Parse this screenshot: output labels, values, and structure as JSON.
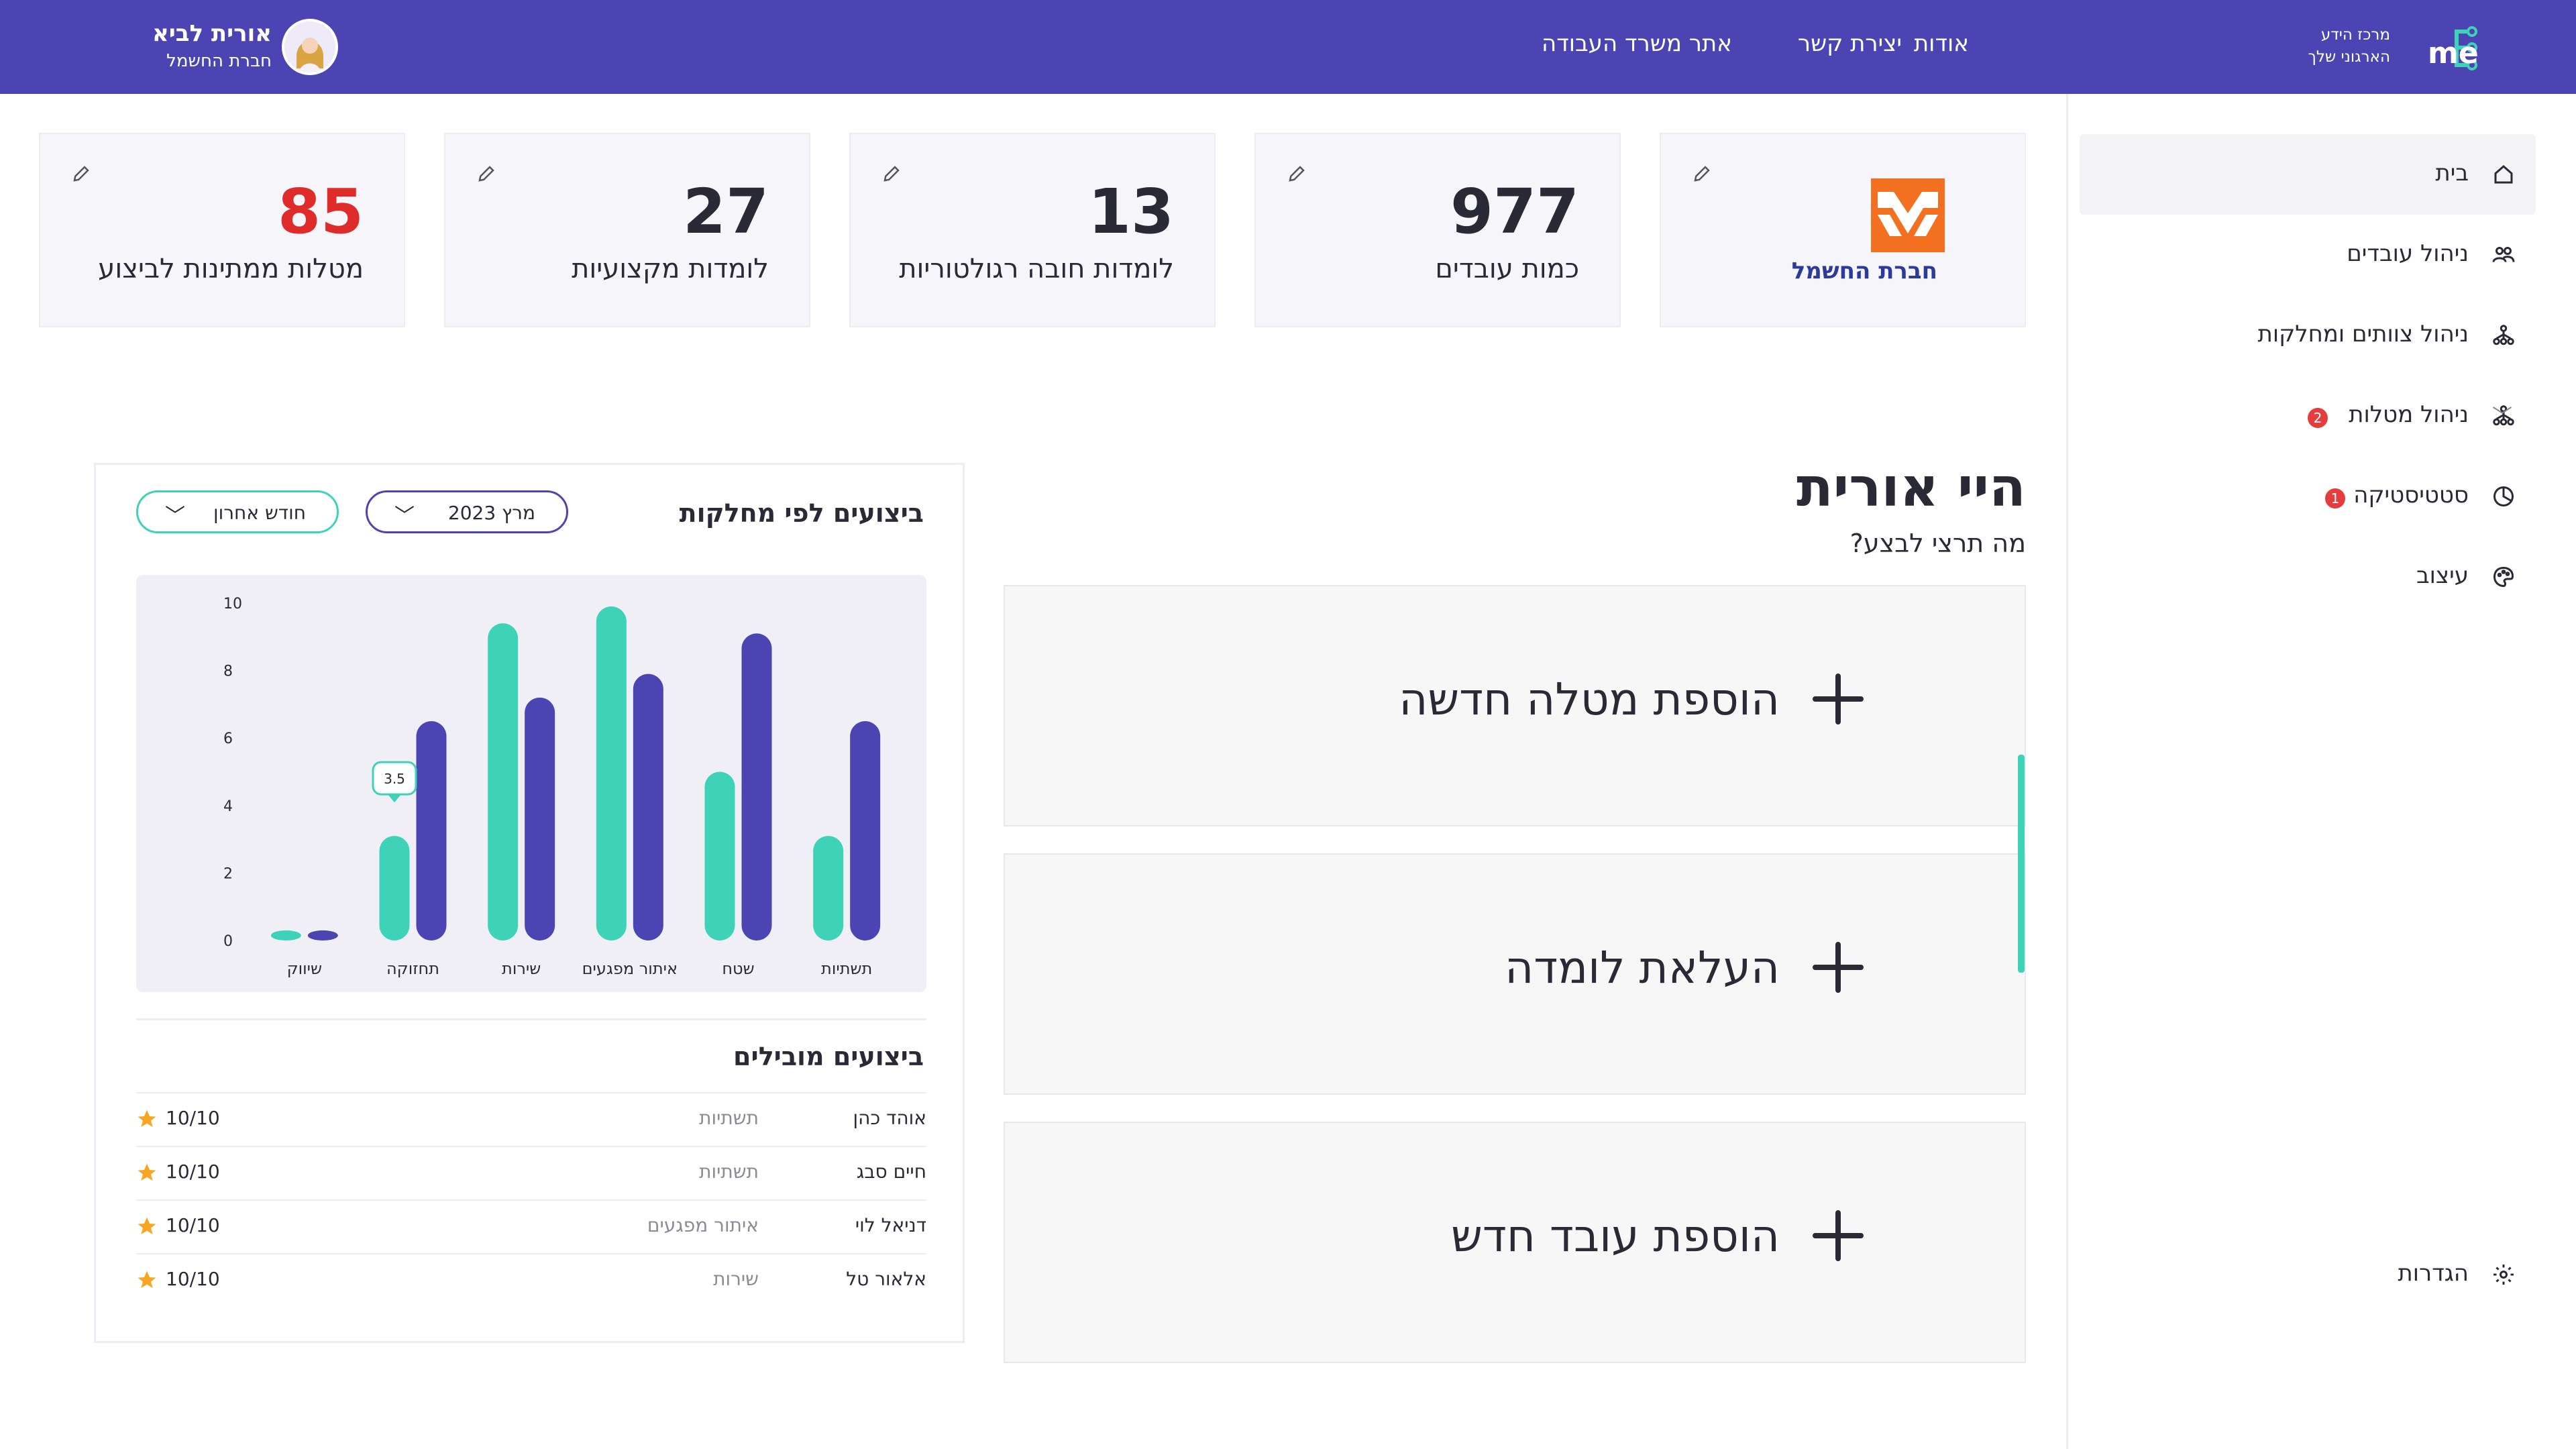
{
  "header": {
    "logo_tagline_1": "מרכז הידע",
    "logo_tagline_2": "הארגוני שלך",
    "logo_brand": "me",
    "nav": [
      "אודות",
      "יצירת קשר",
      "אתר משרד העבודה"
    ],
    "user_name": "אורית לביא",
    "user_company": "חברת החשמל"
  },
  "sidebar": {
    "items": [
      {
        "label": "בית",
        "icon": "home-icon",
        "active": true
      },
      {
        "label": "ניהול עובדים",
        "icon": "users-icon"
      },
      {
        "label": "ניהול צוותים ומחלקות",
        "icon": "org-chart-icon"
      },
      {
        "label": "ניהול מטלות",
        "icon": "tasks-icon",
        "badge": "2"
      },
      {
        "label": "סטטיסטיקה",
        "icon": "stats-icon",
        "badge": "1"
      },
      {
        "label": "עיצוב",
        "icon": "palette-icon"
      }
    ],
    "settings_label": "הגדרות"
  },
  "stats": {
    "company_logo_text": "חברת החשמל",
    "employees_value": "977",
    "employees_label": "כמות עובדים",
    "regulatory_value": "13",
    "regulatory_label": "לומדות חובה רגולטוריות",
    "professional_value": "27",
    "professional_label": "לומדות מקצועיות",
    "pending_value": "85",
    "pending_label": "מטלות ממתינות לביצוע"
  },
  "greeting": {
    "title": "היי אורית",
    "subtitle": "מה תרצי לבצע?"
  },
  "actions": [
    "הוספת מטלה חדשה",
    "העלאת לומדה",
    "הוספת עובד חדש"
  ],
  "panel": {
    "title": "ביצועים לפי מחלקות",
    "filter_month": "מרץ 2023",
    "filter_range": "חודש אחרון",
    "leaders_title": "ביצועים מובילים",
    "leaders": [
      {
        "name": "אוהד כהן",
        "dept": "תשתיות",
        "score": "10/10"
      },
      {
        "name": "חיים סבג",
        "dept": "תשתיות",
        "score": "10/10"
      },
      {
        "name": "דניאל לוי",
        "dept": "איתור מפגעים",
        "score": "10/10"
      },
      {
        "name": "אלאור טל",
        "dept": "שירות",
        "score": "10/10"
      }
    ]
  },
  "colors": {
    "primary": "#4c44b2",
    "accent": "#3ed2b8",
    "alert": "#e02b2b"
  },
  "chart_data": {
    "type": "bar",
    "categories": [
      "תשתיות",
      "שטח",
      "איתור מפגעים",
      "שירות",
      "תחזוקה",
      "שיווק"
    ],
    "series": [
      {
        "values": [
          3.1,
          5.0,
          9.9,
          9.4,
          3.1,
          0.3
        ]
      },
      {
        "values": [
          6.5,
          9.1,
          7.9,
          7.2,
          6.5,
          0.3
        ]
      }
    ],
    "ylim": [
      0,
      10
    ],
    "yticks": [
      0,
      2,
      4,
      6,
      8,
      10
    ],
    "tooltip": "3.5",
    "grid": false
  }
}
